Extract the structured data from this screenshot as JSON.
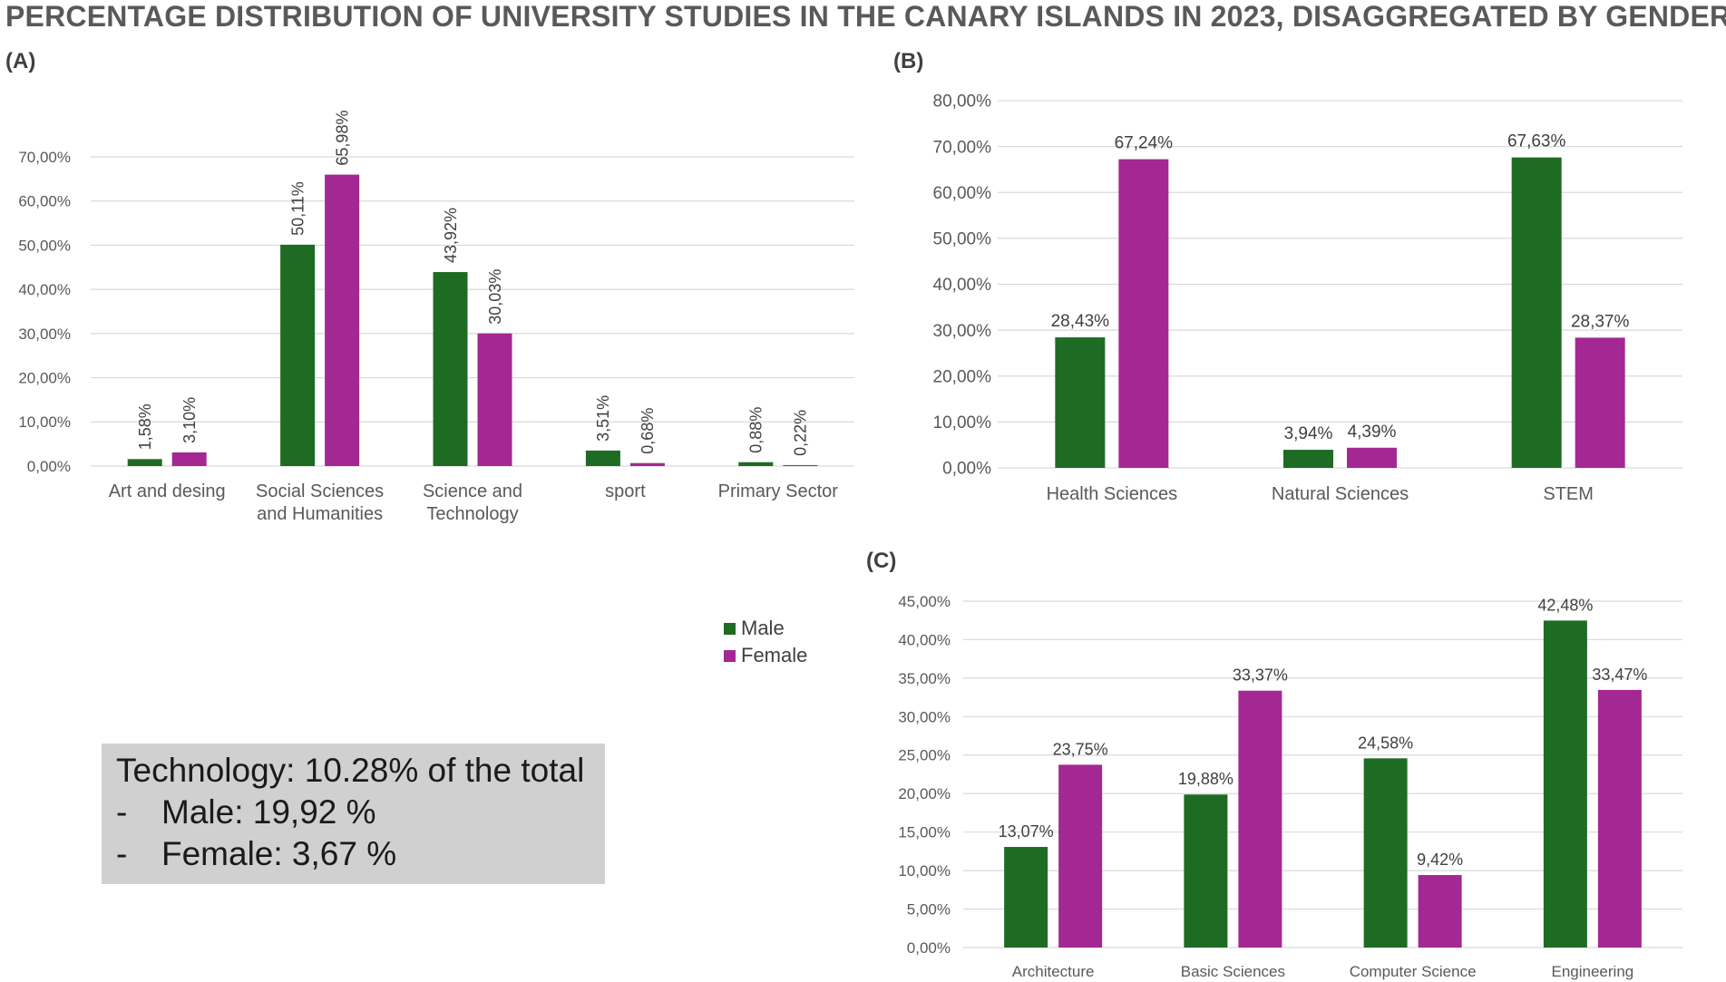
{
  "title": "PERCENTAGE DISTRIBUTION OF UNIVERSITY STUDIES IN THE CANARY ISLANDS IN 2023, DISAGGREGATED BY GENDER",
  "colors": {
    "male": "#1e6b23",
    "female": "#a32893",
    "grid": "#d9d9d9"
  },
  "legend": {
    "male": "Male",
    "female": "Female"
  },
  "note": {
    "heading": "Technology: 10.28% of the total",
    "items": [
      {
        "dash": "-",
        "text": "Male: 19,92 %"
      },
      {
        "dash": "-",
        "text": "Female: 3,67 %"
      }
    ]
  },
  "chart_data": [
    {
      "id": "A",
      "panel_label": "(A)",
      "type": "bar",
      "categories": [
        [
          "Art and desing"
        ],
        [
          "Social Sciences",
          "and Humanities"
        ],
        [
          "Science and",
          "Technology"
        ],
        [
          "sport"
        ],
        [
          "Primary Sector"
        ]
      ],
      "series": [
        {
          "name": "Male",
          "values": [
            1.58,
            50.11,
            43.92,
            3.51,
            0.88
          ],
          "labels": [
            "1,58%",
            "50,11%",
            "43,92%",
            "3,51%",
            "0,88%"
          ]
        },
        {
          "name": "Female",
          "values": [
            3.1,
            65.98,
            30.03,
            0.68,
            0.22
          ],
          "labels": [
            "3,10%",
            "65,98%",
            "30,03%",
            "0,68%",
            "0,22%"
          ]
        }
      ],
      "ylim": [
        0,
        70
      ],
      "yticks": [
        0,
        10,
        20,
        30,
        40,
        50,
        60,
        70
      ],
      "yticklabels": [
        "0,00%",
        "10,00%",
        "20,00%",
        "30,00%",
        "40,00%",
        "50,00%",
        "60,00%",
        "70,00%"
      ],
      "label_rotation": "vertical"
    },
    {
      "id": "B",
      "panel_label": "(B)",
      "type": "bar",
      "categories": [
        [
          "Health Sciences"
        ],
        [
          "Natural Sciences"
        ],
        [
          "STEM"
        ]
      ],
      "series": [
        {
          "name": "Male",
          "values": [
            28.43,
            3.94,
            67.63
          ],
          "labels": [
            "28,43%",
            "3,94%",
            "67,63%"
          ]
        },
        {
          "name": "Female",
          "values": [
            67.24,
            4.39,
            28.37
          ],
          "labels": [
            "67,24%",
            "4,39%",
            "28,37%"
          ]
        }
      ],
      "ylim": [
        0,
        80
      ],
      "yticks": [
        0,
        10,
        20,
        30,
        40,
        50,
        60,
        70,
        80
      ],
      "yticklabels": [
        "0,00%",
        "10,00%",
        "20,00%",
        "30,00%",
        "40,00%",
        "50,00%",
        "60,00%",
        "70,00%",
        "80,00%"
      ],
      "label_rotation": "horizontal"
    },
    {
      "id": "C",
      "panel_label": "(C)",
      "type": "bar",
      "categories": [
        [
          "Architecture"
        ],
        [
          "Basic Sciences"
        ],
        [
          "Computer Science"
        ],
        [
          "Engineering"
        ]
      ],
      "series": [
        {
          "name": "Male",
          "values": [
            13.07,
            19.88,
            24.58,
            42.48
          ],
          "labels": [
            "13,07%",
            "19,88%",
            "24,58%",
            "42,48%"
          ]
        },
        {
          "name": "Female",
          "values": [
            23.75,
            33.37,
            9.42,
            33.47
          ],
          "labels": [
            "23,75%",
            "33,37%",
            "9,42%",
            "33,47%"
          ]
        }
      ],
      "ylim": [
        0,
        45
      ],
      "yticks": [
        0,
        5,
        10,
        15,
        20,
        25,
        30,
        35,
        40,
        45
      ],
      "yticklabels": [
        "0,00%",
        "5,00%",
        "10,00%",
        "15,00%",
        "20,00%",
        "25,00%",
        "30,00%",
        "35,00%",
        "40,00%",
        "45,00%"
      ],
      "label_rotation": "horizontal"
    }
  ]
}
